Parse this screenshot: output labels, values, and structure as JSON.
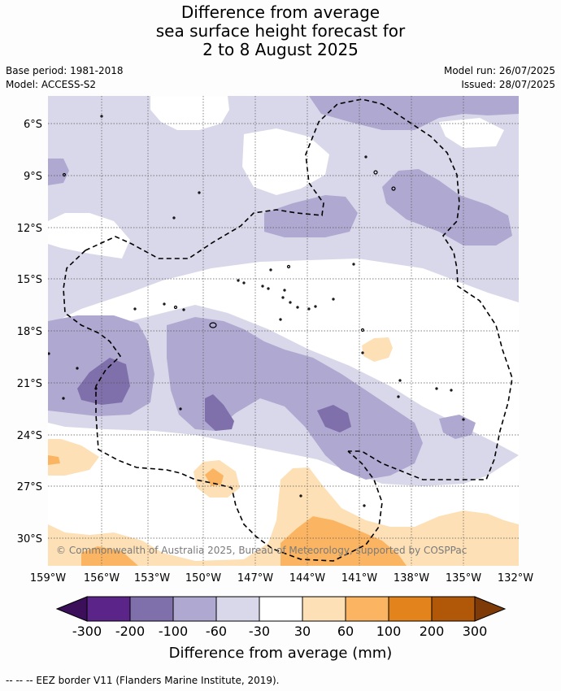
{
  "title": {
    "line1": "Difference from average",
    "line2": "sea surface height forecast for",
    "line3": "2 to 8 August 2025"
  },
  "meta": {
    "base_period": "Base period: 1981-2018",
    "model": "Model: ACCESS-S2",
    "model_run": "Model run: 26/07/2025",
    "issued": "Issued: 28/07/2025"
  },
  "map": {
    "lat_labels": [
      "6°S",
      "9°S",
      "12°S",
      "15°S",
      "18°S",
      "21°S",
      "24°S",
      "27°S",
      "30°S"
    ],
    "lon_labels": [
      "159°W",
      "156°W",
      "153°W",
      "150°W",
      "147°W",
      "144°W",
      "141°W",
      "138°W",
      "135°W",
      "132°W"
    ],
    "copyright": "© Commonwealth of Australia 2025, Bureau of Meteorology, supported by COSPPac"
  },
  "colorbar": {
    "ticks": [
      "-300",
      "-200",
      "-100",
      "-60",
      "-30",
      "30",
      "60",
      "100",
      "200",
      "300"
    ],
    "colors": {
      "below_-300": "#3b0f59",
      "-300_-200": "#5b2488",
      "-200_-100": "#7f6fab",
      "-100_-60": "#afa8d0",
      "-60_-30": "#d8d8ea",
      "-30_30": "#ffffff",
      "30_60": "#fde0b6",
      "60_100": "#fbb562",
      "100_200": "#e3831c",
      "200_300": "#b05808",
      "above_300": "#7f3b07"
    },
    "label": "Difference from average (mm)"
  },
  "footer": {
    "legend": "--  --  -- EEZ border V11 (Flanders Marine Institute, 2019)."
  }
}
